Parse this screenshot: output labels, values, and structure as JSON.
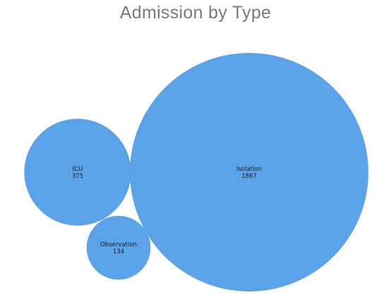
{
  "chart_data": {
    "type": "bubble",
    "title": "Admission by Type",
    "bubble_color": "#5ba3e8",
    "label_color": "#1a1a1a",
    "series": [
      {
        "label": "ICU",
        "value": 375
      },
      {
        "label": "Isolation",
        "value": 1867
      },
      {
        "label": "Observation",
        "value": 134
      }
    ]
  }
}
